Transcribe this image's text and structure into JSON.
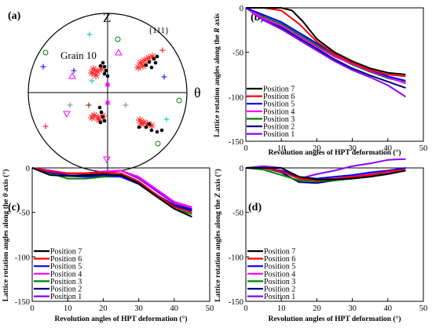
{
  "colors": {
    "Position 7": "#000000",
    "Position 6": "#ff0000",
    "Position 5": "#0000ff",
    "Position 4": "#ff00ff",
    "Position 3": "#008000",
    "Position 2": "#000080",
    "Position 1": "#8b00ff"
  },
  "pole_figure": {
    "panel_label": "(a)",
    "title": "{111}",
    "axis_top": "Z",
    "axis_right": "θ",
    "grain_label": "Grain 10"
  },
  "chart_data": [
    {
      "panel": "(b)",
      "type": "line",
      "xlabel": "Revolution angles of HPT deformation (°)",
      "ylabel_pre": "Lattice rotation angles along the ",
      "ylabel_var": "R",
      "ylabel_post": " axis",
      "xlim": [
        0,
        50
      ],
      "ylim": [
        -150,
        0
      ],
      "xticks": [
        0,
        10,
        20,
        30,
        40,
        50
      ],
      "yticks": [
        0,
        -50,
        -100,
        -150
      ],
      "legend": "bottom-left",
      "series": [
        {
          "name": "Position 7",
          "x": [
            0,
            5,
            10,
            13,
            16,
            20,
            25,
            30,
            35,
            40,
            45
          ],
          "y": [
            0,
            0,
            0,
            -3,
            -15,
            -35,
            -50,
            -60,
            -68,
            -73,
            -75
          ]
        },
        {
          "name": "Position 6",
          "x": [
            0,
            5,
            10,
            15,
            20,
            25,
            30,
            35,
            40,
            45
          ],
          "y": [
            0,
            0,
            -3,
            -18,
            -38,
            -52,
            -62,
            -70,
            -75,
            -77
          ]
        },
        {
          "name": "Position 5",
          "x": [
            0,
            5,
            10,
            15,
            20,
            25,
            30,
            35,
            40,
            45
          ],
          "y": [
            0,
            -8,
            -16,
            -28,
            -40,
            -52,
            -62,
            -70,
            -77,
            -82
          ]
        },
        {
          "name": "Position 4",
          "x": [
            0,
            5,
            10,
            15,
            20,
            25,
            30,
            35,
            40,
            45
          ],
          "y": [
            0,
            -12,
            -20,
            -32,
            -44,
            -55,
            -63,
            -71,
            -78,
            -85
          ]
        },
        {
          "name": "Position 3",
          "x": [
            0,
            5,
            10,
            15,
            20,
            25,
            30,
            35,
            40,
            45
          ],
          "y": [
            0,
            -10,
            -18,
            -30,
            -42,
            -54,
            -64,
            -72,
            -79,
            -84
          ]
        },
        {
          "name": "Position 2",
          "x": [
            0,
            5,
            10,
            15,
            20,
            25,
            30,
            35,
            40,
            45
          ],
          "y": [
            0,
            -12,
            -22,
            -34,
            -46,
            -58,
            -68,
            -76,
            -83,
            -90
          ]
        },
        {
          "name": "Position 1",
          "x": [
            0,
            5,
            10,
            15,
            20,
            25,
            30,
            35,
            40,
            45
          ],
          "y": [
            0,
            -14,
            -24,
            -36,
            -48,
            -60,
            -70,
            -78,
            -87,
            -100
          ]
        }
      ]
    },
    {
      "panel": "(c)",
      "type": "line",
      "xlabel": "Revolution angles of HPT deformation (°)",
      "ylabel_pre": "Lattice rotation angles along the ",
      "ylabel_var": "θ",
      "ylabel_post": " axis (°)",
      "xlim": [
        0,
        50
      ],
      "ylim": [
        -150,
        0
      ],
      "xticks": [
        0,
        10,
        20,
        30,
        40,
        50
      ],
      "yticks": [
        0,
        -50,
        -100,
        -150
      ],
      "legend": "bottom-left",
      "series": [
        {
          "name": "Position 7",
          "x": [
            0,
            5,
            10,
            15,
            20,
            25,
            30,
            35,
            40,
            45
          ],
          "y": [
            0,
            -8,
            -9,
            -8,
            -7,
            -8,
            -18,
            -32,
            -46,
            -55
          ]
        },
        {
          "name": "Position 6",
          "x": [
            0,
            5,
            10,
            15,
            20,
            25,
            30,
            35,
            40,
            45
          ],
          "y": [
            0,
            -4,
            -6,
            -6,
            -5,
            -6,
            -15,
            -30,
            -44,
            -50
          ]
        },
        {
          "name": "Position 5",
          "x": [
            0,
            5,
            10,
            15,
            20,
            25,
            30,
            35,
            40,
            45
          ],
          "y": [
            0,
            -5,
            -8,
            -9,
            -8,
            -10,
            -18,
            -32,
            -44,
            -48
          ]
        },
        {
          "name": "Position 4",
          "x": [
            0,
            5,
            10,
            15,
            20,
            25,
            30,
            35,
            40,
            45
          ],
          "y": [
            0,
            -4,
            -6,
            -6,
            -4,
            -3,
            -10,
            -24,
            -38,
            -44
          ]
        },
        {
          "name": "Position 3",
          "x": [
            0,
            5,
            10,
            15,
            20,
            25,
            30,
            35,
            40,
            45
          ],
          "y": [
            0,
            -6,
            -12,
            -12,
            -10,
            -10,
            -18,
            -32,
            -46,
            -52
          ]
        },
        {
          "name": "Position 2",
          "x": [
            0,
            5,
            10,
            15,
            20,
            25,
            30,
            35,
            40,
            45
          ],
          "y": [
            0,
            -4,
            -9,
            -10,
            -9,
            -8,
            -16,
            -30,
            -42,
            -47
          ]
        },
        {
          "name": "Position 1",
          "x": [
            0,
            5,
            10,
            15,
            20,
            25,
            30,
            35,
            40,
            45
          ],
          "y": [
            0,
            -3,
            -6,
            -7,
            -5,
            -3,
            -12,
            -26,
            -40,
            -46
          ]
        }
      ]
    },
    {
      "panel": "(d)",
      "type": "line",
      "xlabel": "Revolution angles of HPT deformation (°)",
      "ylabel_pre": "Lattice rotation angles along the ",
      "ylabel_var": "Z",
      "ylabel_post": " axis (°)",
      "xlim": [
        0,
        50
      ],
      "ylim": [
        -150,
        0
      ],
      "xticks": [
        0,
        10,
        20,
        30,
        40,
        50
      ],
      "yticks": [
        0,
        -50,
        -100,
        -150
      ],
      "legend": "bottom-left",
      "series": [
        {
          "name": "Position 7",
          "x": [
            0,
            5,
            10,
            15,
            20,
            25,
            30,
            35,
            40,
            45
          ],
          "y": [
            0,
            0,
            0,
            -10,
            -13,
            -13,
            -12,
            -10,
            -7,
            -3
          ]
        },
        {
          "name": "Position 6",
          "x": [
            0,
            5,
            10,
            15,
            20,
            25,
            30,
            35,
            40,
            45
          ],
          "y": [
            0,
            0,
            -4,
            -12,
            -14,
            -12,
            -10,
            -8,
            -4,
            -2
          ]
        },
        {
          "name": "Position 5",
          "x": [
            0,
            5,
            10,
            15,
            20,
            25,
            30,
            35,
            40,
            45
          ],
          "y": [
            0,
            0,
            -3,
            -10,
            -12,
            -10,
            -8,
            -5,
            -3,
            0
          ]
        },
        {
          "name": "Position 4",
          "x": [
            0,
            5,
            10,
            15,
            20,
            25,
            30,
            35,
            40,
            45
          ],
          "y": [
            0,
            0,
            -3,
            -12,
            -13,
            -12,
            -10,
            -7,
            -5,
            -2
          ]
        },
        {
          "name": "Position 3",
          "x": [
            0,
            5,
            10,
            15,
            20,
            25,
            30,
            35,
            40,
            45
          ],
          "y": [
            0,
            -2,
            -8,
            -14,
            -15,
            -14,
            -12,
            -9,
            -6,
            -3
          ]
        },
        {
          "name": "Position 2",
          "x": [
            0,
            5,
            10,
            15,
            20,
            25,
            30,
            35,
            40,
            45
          ],
          "y": [
            0,
            0,
            -5,
            -16,
            -17,
            -14,
            -11,
            -8,
            -5,
            -2
          ]
        },
        {
          "name": "Position 1",
          "x": [
            0,
            5,
            10,
            15,
            20,
            25,
            30,
            35,
            40,
            45
          ],
          "y": [
            0,
            2,
            0,
            -12,
            -7,
            -3,
            2,
            5,
            9,
            10
          ]
        }
      ]
    }
  ]
}
